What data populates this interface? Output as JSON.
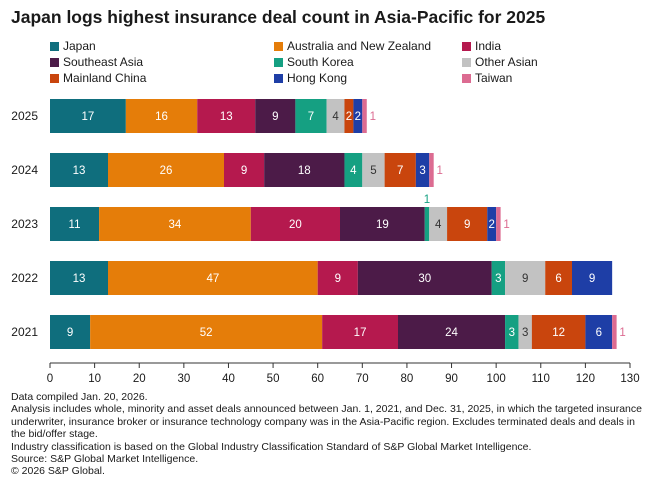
{
  "title": "Japan logs highest insurance deal count in Asia-Pacific for 2025",
  "chart_data": {
    "type": "bar",
    "orientation": "horizontal",
    "stacked": true,
    "title": "Japan logs highest insurance deal count in Asia-Pacific for 2025",
    "categories": [
      "2025",
      "2024",
      "2023",
      "2022",
      "2021"
    ],
    "xlim": [
      0,
      130
    ],
    "xticks": [
      0,
      10,
      20,
      30,
      40,
      50,
      60,
      70,
      80,
      90,
      100,
      110,
      120,
      130
    ],
    "legend_position": "top",
    "series": [
      {
        "name": "Japan",
        "color": "#0f6e7d",
        "values": [
          17,
          13,
          11,
          13,
          9
        ]
      },
      {
        "name": "Australia and New Zealand",
        "color": "#e57d09",
        "values": [
          16,
          26,
          34,
          47,
          52
        ]
      },
      {
        "name": "India",
        "color": "#b5194e",
        "values": [
          13,
          9,
          20,
          9,
          17
        ]
      },
      {
        "name": "Southeast Asia",
        "color": "#4c1b48",
        "values": [
          9,
          18,
          19,
          30,
          24
        ]
      },
      {
        "name": "South Korea",
        "color": "#15a082",
        "values": [
          7,
          4,
          1,
          3,
          3
        ]
      },
      {
        "name": "Other Asian",
        "color": "#c2c2c2",
        "values": [
          4,
          5,
          4,
          9,
          3
        ]
      },
      {
        "name": "Mainland China",
        "color": "#c9450d",
        "values": [
          2,
          7,
          9,
          6,
          12
        ]
      },
      {
        "name": "Hong Kong",
        "color": "#1e3ea6",
        "values": [
          2,
          3,
          2,
          9,
          6
        ]
      },
      {
        "name": "Taiwan",
        "color": "#dc6b91",
        "values": [
          1,
          1,
          1,
          0,
          1
        ]
      }
    ]
  },
  "notes": [
    "Data compiled Jan. 20, 2026.",
    "Analysis includes whole, minority and asset deals announced between Jan. 1, 2021, and Dec. 31, 2025, in which the targeted insurance underwriter, insurance broker or insurance technology company was in the Asia-Pacific region. Excludes terminated deals and deals in the bid/offer stage.",
    "Industry classification is based on the Global Industry Classification Standard of S&P Global Market Intelligence.",
    "Source: S&P Global Market Intelligence.",
    "© 2026 S&P Global."
  ]
}
